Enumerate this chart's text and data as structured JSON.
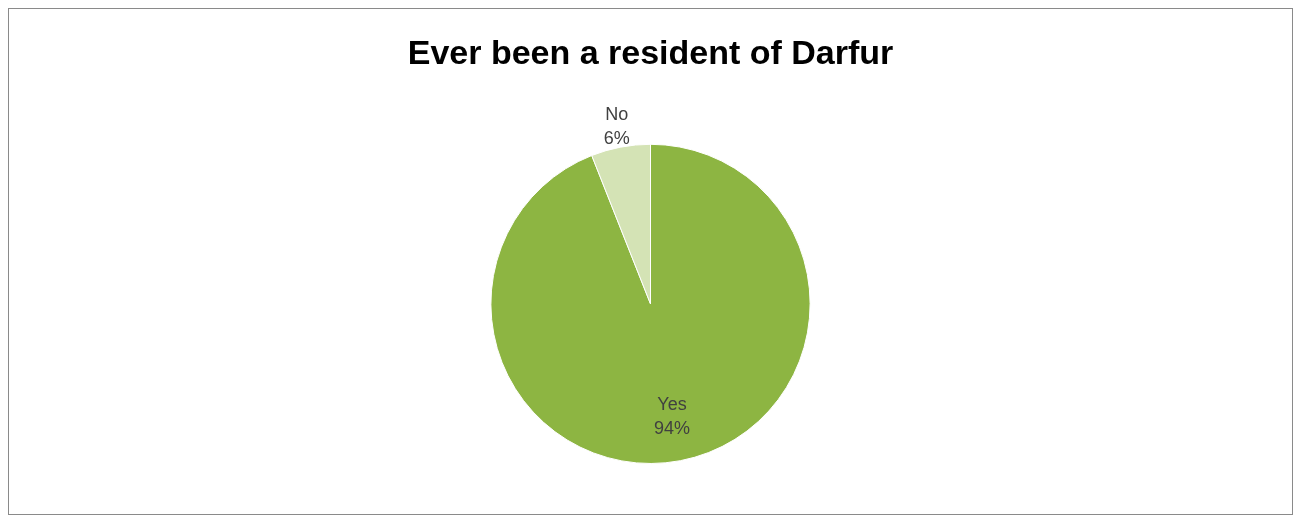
{
  "chart_data": {
    "type": "pie",
    "title": "Ever been a resident of Darfur",
    "categories": [
      "Yes",
      "No"
    ],
    "values": [
      94,
      6
    ],
    "value_labels": [
      "94%",
      "6%"
    ],
    "colors": [
      "#8db542",
      "#d4e3b5"
    ],
    "legend": false
  }
}
